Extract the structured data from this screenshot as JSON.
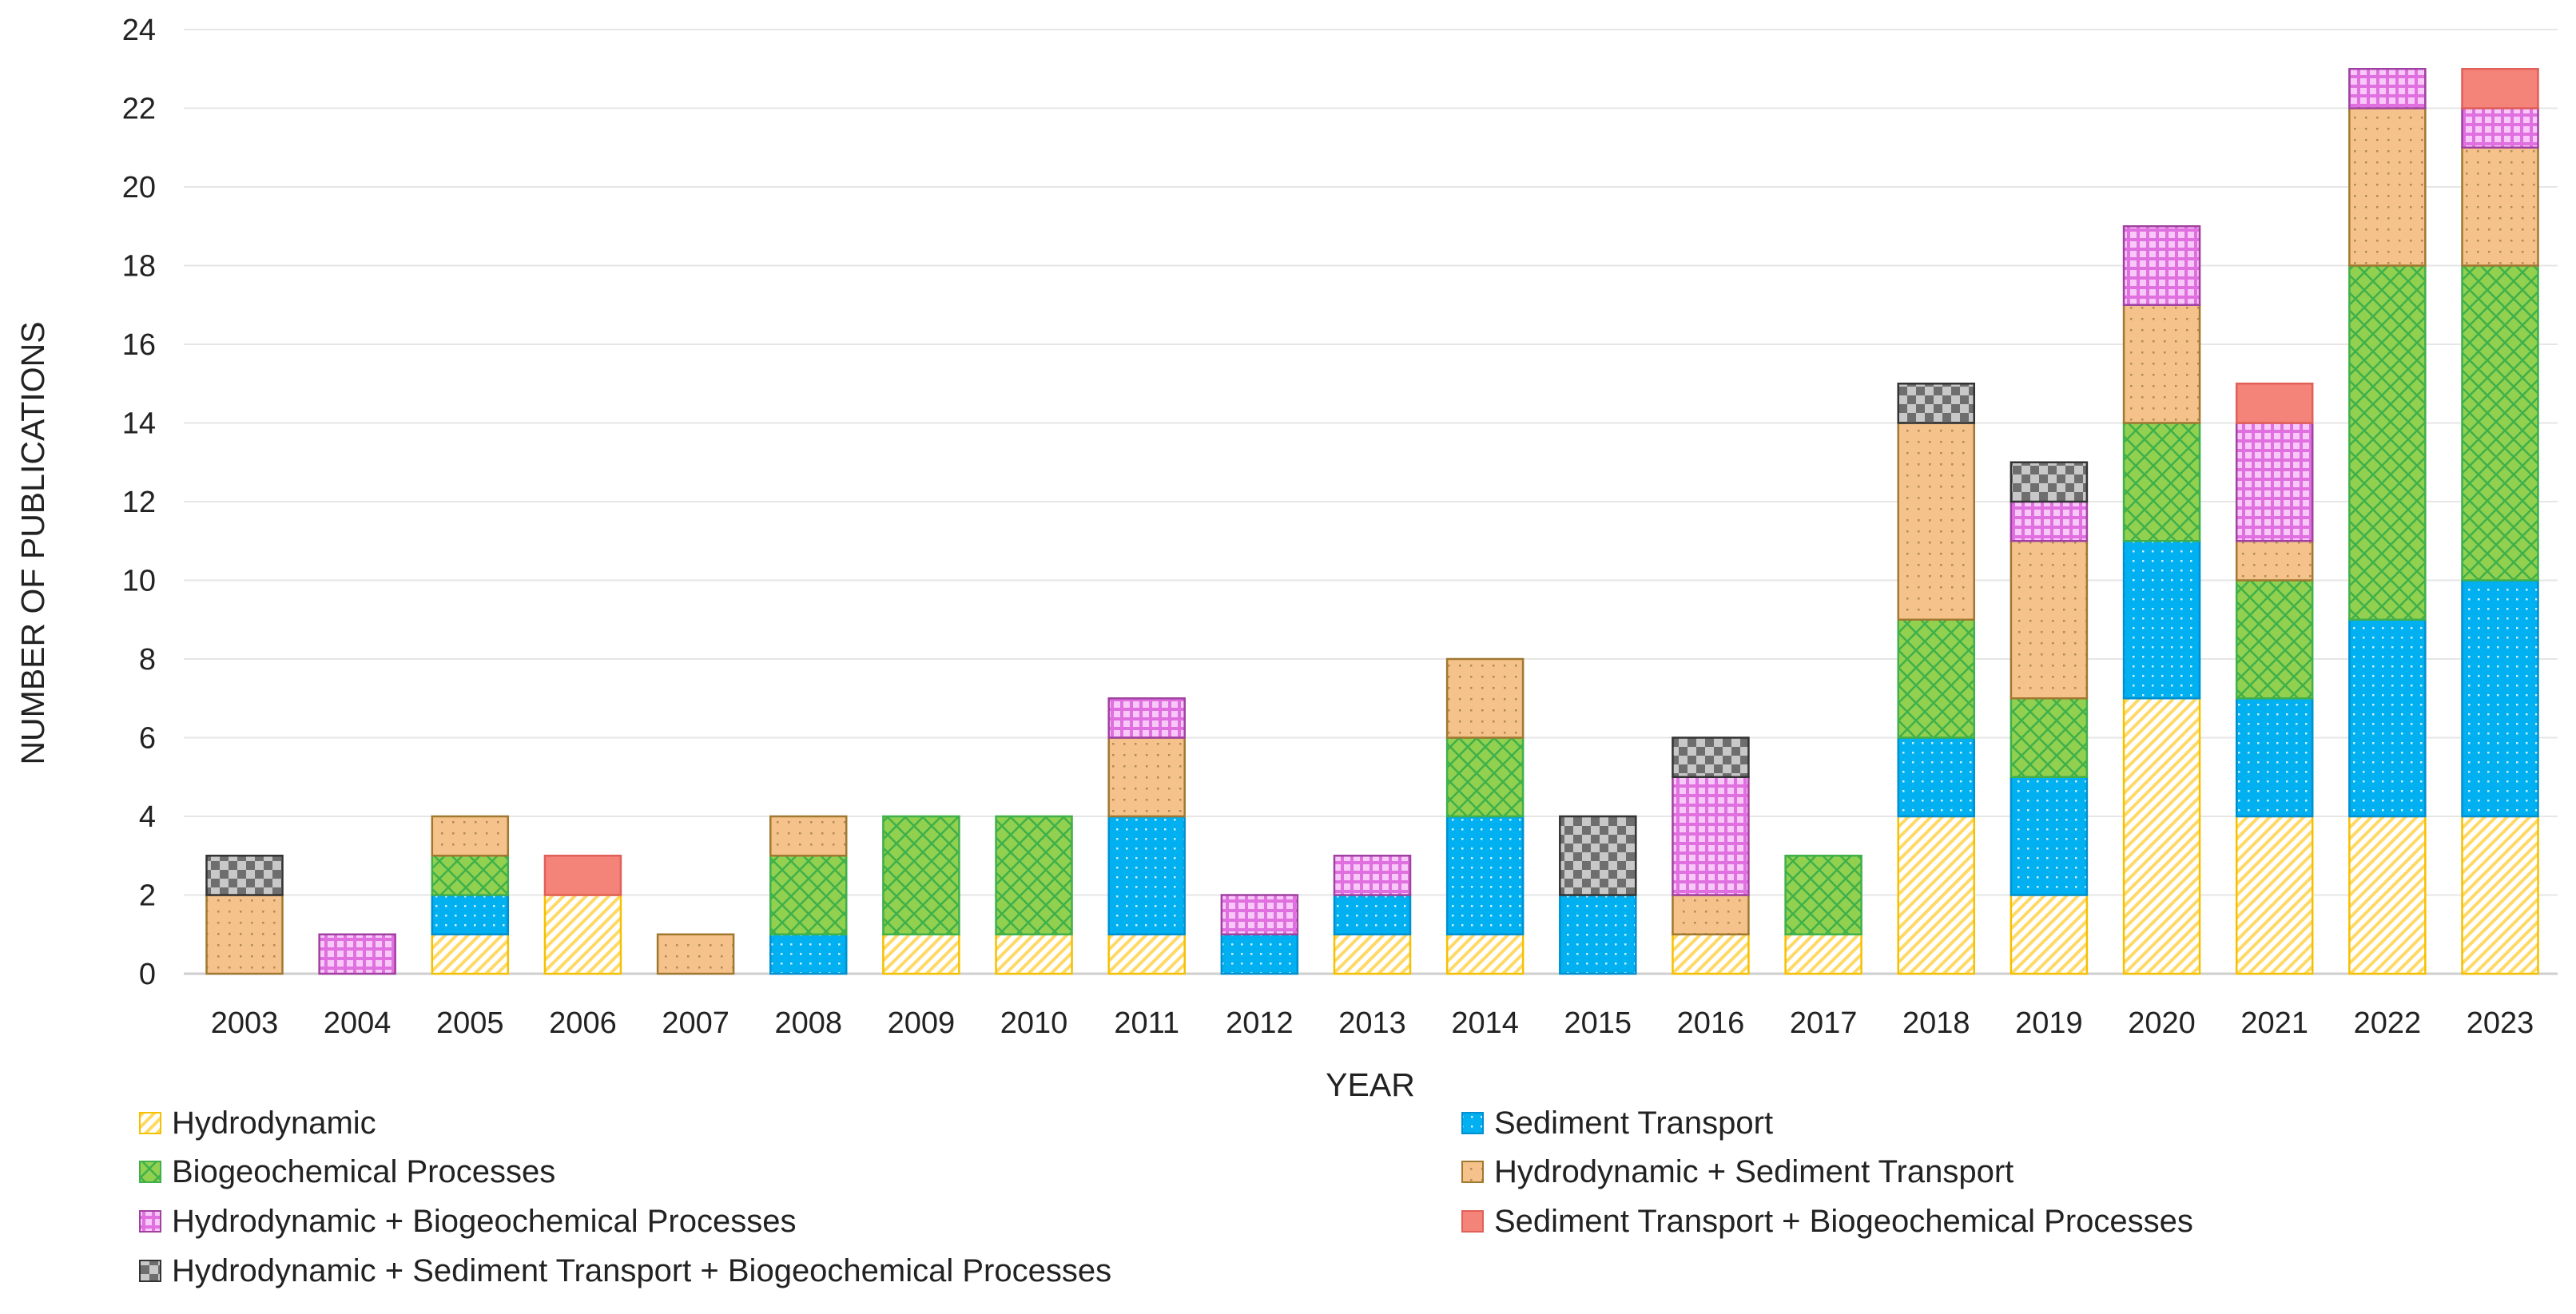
{
  "chart_data": {
    "type": "bar",
    "stacked": true,
    "title": "",
    "xlabel": "YEAR",
    "ylabel": "NUMBER OF PUBLICATIONS",
    "ylim": [
      0,
      24
    ],
    "yticks": [
      0,
      2,
      4,
      6,
      8,
      10,
      12,
      14,
      16,
      18,
      20,
      22,
      24
    ],
    "grid": true,
    "legend_position": "bottom",
    "categories": [
      "2003",
      "2004",
      "2005",
      "2006",
      "2007",
      "2008",
      "2009",
      "2010",
      "2011",
      "2012",
      "2013",
      "2014",
      "2015",
      "2016",
      "2017",
      "2018",
      "2019",
      "2020",
      "2021",
      "2022",
      "2023"
    ],
    "series": [
      {
        "name": "Hydrodynamic",
        "color": "#FFD966",
        "pattern": "diagonal",
        "values": [
          0,
          0,
          1,
          2,
          0,
          0,
          1,
          1,
          1,
          0,
          1,
          1,
          0,
          1,
          1,
          4,
          2,
          7,
          4,
          4,
          4
        ]
      },
      {
        "name": "Sediment Transport",
        "color": "#00B0F0",
        "pattern": "dots",
        "values": [
          0,
          0,
          1,
          0,
          0,
          1,
          0,
          0,
          3,
          1,
          1,
          3,
          2,
          0,
          0,
          2,
          3,
          4,
          3,
          5,
          6
        ]
      },
      {
        "name": "Biogeochemical Processes",
        "color": "#92D050",
        "pattern": "crosshatch",
        "values": [
          0,
          0,
          1,
          0,
          0,
          2,
          3,
          3,
          0,
          0,
          0,
          2,
          0,
          0,
          2,
          3,
          2,
          3,
          3,
          9,
          8
        ]
      },
      {
        "name": "Hydrodynamic + Sediment Transport",
        "color": "#F4C28A",
        "pattern": "dotted",
        "values": [
          2,
          0,
          1,
          0,
          1,
          1,
          0,
          0,
          2,
          0,
          0,
          2,
          0,
          1,
          0,
          5,
          4,
          3,
          1,
          4,
          3
        ]
      },
      {
        "name": "Hydrodynamic + Biogeochemical Processes",
        "color": "#F08CF0",
        "pattern": "grid",
        "values": [
          0,
          1,
          0,
          0,
          0,
          0,
          0,
          0,
          1,
          1,
          1,
          0,
          0,
          3,
          0,
          0,
          1,
          2,
          3,
          1,
          1
        ]
      },
      {
        "name": "Sediment Transport + Biogeochemical Processes",
        "color": "#F4837A",
        "pattern": "solid",
        "values": [
          0,
          0,
          0,
          1,
          0,
          0,
          0,
          0,
          0,
          0,
          0,
          0,
          0,
          0,
          0,
          0,
          0,
          0,
          1,
          0,
          1
        ]
      },
      {
        "name": "Hydrodynamic + Sediment Transport + Biogeochemical Processes",
        "color": "#8C8C8C",
        "pattern": "checker",
        "values": [
          1,
          0,
          0,
          0,
          0,
          0,
          0,
          0,
          0,
          0,
          0,
          0,
          2,
          1,
          0,
          1,
          1,
          0,
          0,
          0,
          0
        ]
      }
    ]
  }
}
